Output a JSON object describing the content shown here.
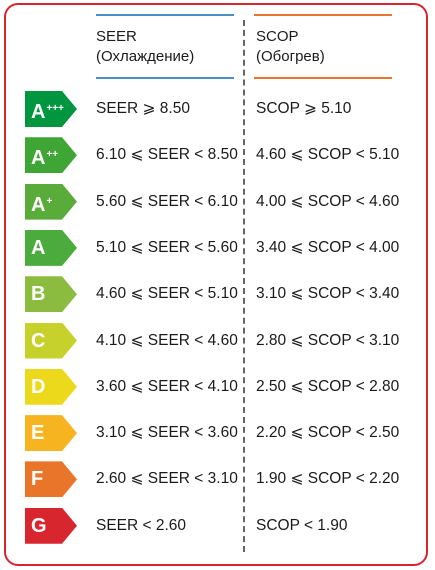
{
  "header": {
    "seer": {
      "title": "SEER",
      "subtitle": "(Охлаждение)",
      "color": "#4a90c8"
    },
    "scop": {
      "title": "SCOP",
      "subtitle": "(Обогрев)",
      "color": "#e8752b"
    }
  },
  "rows": [
    {
      "cls": "A",
      "sup": "+++",
      "color": "#00963f",
      "seer": "SEER ⩾ 8.50",
      "scop": "SCOP ⩾ 5.10"
    },
    {
      "cls": "A",
      "sup": "++",
      "color": "#3fa535",
      "seer": "6.10 ⩽ SEER < 8.50",
      "scop": "4.60 ⩽ SCOP < 5.10"
    },
    {
      "cls": "A",
      "sup": "+",
      "color": "#5aac3a",
      "seer": "5.60 ⩽ SEER < 6.10",
      "scop": "4.00 ⩽ SCOP < 4.60"
    },
    {
      "cls": "A",
      "sup": "",
      "color": "#4bab3c",
      "seer": "5.10 ⩽ SEER < 5.60",
      "scop": "3.40 ⩽ SCOP < 4.00"
    },
    {
      "cls": "B",
      "sup": "",
      "color": "#8cbc3f",
      "seer": "4.60 ⩽ SEER < 5.10",
      "scop": "3.10 ⩽ SCOP < 3.40"
    },
    {
      "cls": "C",
      "sup": "",
      "color": "#c7d12c",
      "seer": "4.10 ⩽ SEER < 4.60",
      "scop": "2.80 ⩽ SCOP < 3.10"
    },
    {
      "cls": "D",
      "sup": "",
      "color": "#ecd91c",
      "seer": "3.60 ⩽ SEER < 4.10",
      "scop": "2.50 ⩽ SCOP < 2.80"
    },
    {
      "cls": "E",
      "sup": "",
      "color": "#f6b520",
      "seer": "3.10 ⩽ SEER < 3.60",
      "scop": "2.20 ⩽ SCOP < 2.50"
    },
    {
      "cls": "F",
      "sup": "",
      "color": "#e9752a",
      "seer": "2.60 ⩽ SEER < 3.10",
      "scop": "1.90 ⩽ SCOP < 2.20"
    },
    {
      "cls": "G",
      "sup": "",
      "color": "#d8262e",
      "seer": "SEER < 2.60",
      "scop": "SCOP < 1.90"
    }
  ]
}
